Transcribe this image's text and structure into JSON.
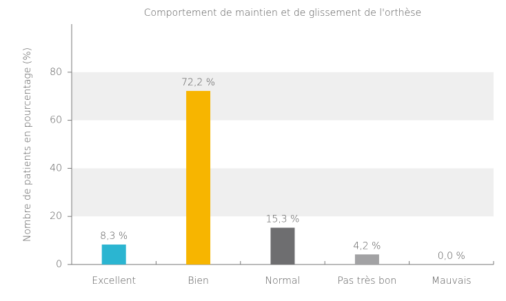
{
  "chart_data": {
    "type": "bar",
    "title": "Comportement de maintien et de glissement de l'orthèse",
    "y_label": "Nombre de patients en pourcentage (%)",
    "categories": [
      "Excellent",
      "Bien",
      "Normal",
      "Pas très bon",
      "Mauvais"
    ],
    "values": [
      8.3,
      72.2,
      15.3,
      4.2,
      0.0
    ],
    "value_labels": [
      "8,3 %",
      "72,2 %",
      "15,3 %",
      "4,2 %",
      "0,0 %"
    ],
    "colors": [
      "#2bb5d1",
      "#f7b500",
      "#6e6e70",
      "#a2a2a4",
      "#bdbdbd"
    ],
    "ylim": [
      0,
      100
    ],
    "yticks": [
      0,
      20,
      40,
      60,
      80
    ],
    "grid": true
  }
}
